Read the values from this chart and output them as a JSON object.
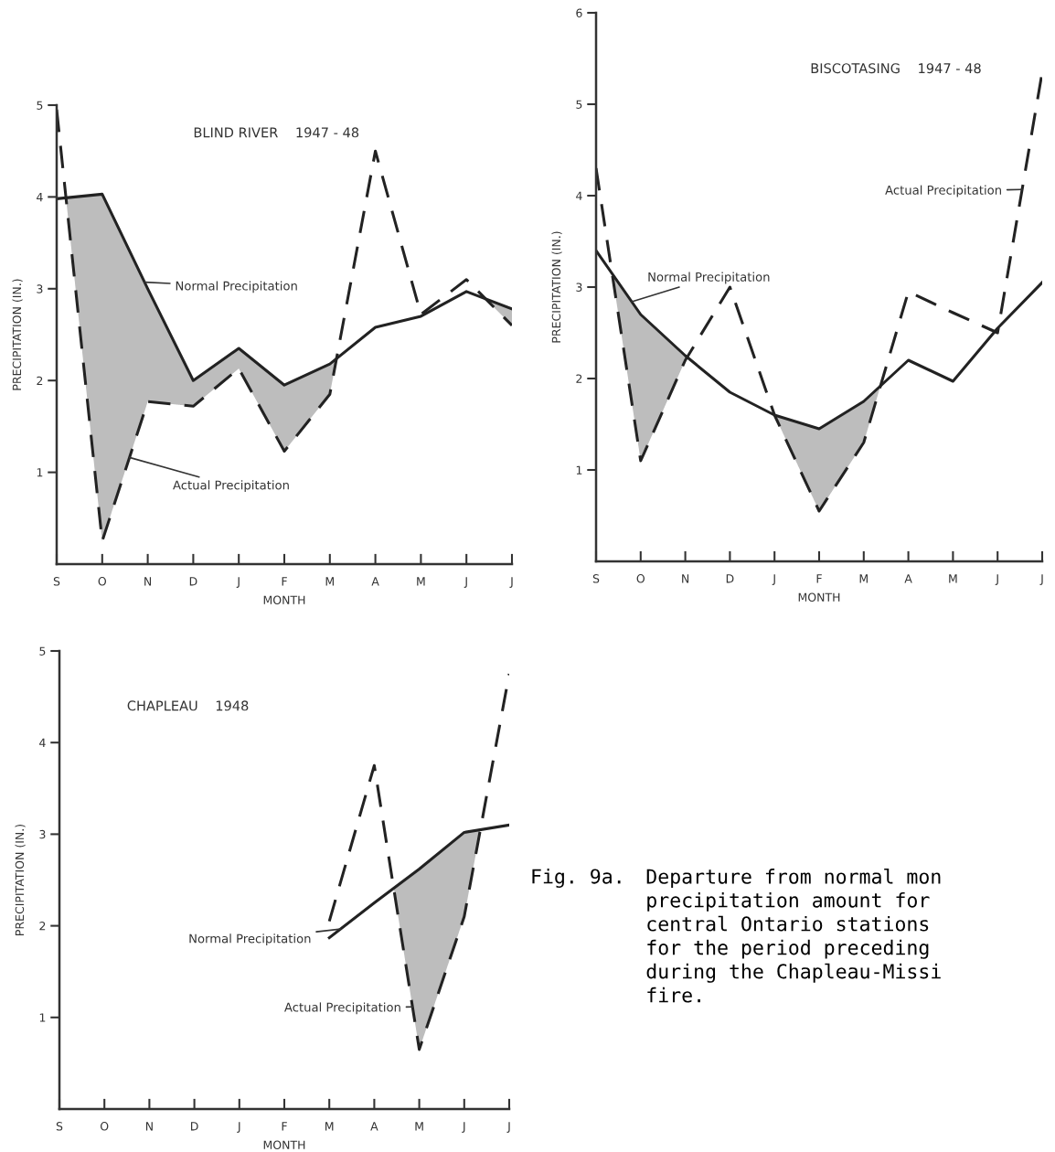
{
  "chart_data": [
    {
      "type": "line",
      "title": "BLIND RIVER    1947 - 48",
      "xlabel": "MONTH",
      "ylabel": "PRECIPITATION (IN.)",
      "categories": [
        "S",
        "O",
        "N",
        "D",
        "J",
        "F",
        "M",
        "A",
        "M",
        "J",
        "J"
      ],
      "ylim": [
        0,
        5
      ],
      "yticks": [
        1,
        2,
        3,
        4,
        5
      ],
      "grid": false,
      "legend": false,
      "marker": "none",
      "series": [
        {
          "name": "Normal Precipitation",
          "color": "#222222",
          "line_style": "solid",
          "values": [
            3.98,
            4.03,
            3.0,
            2.0,
            2.35,
            1.95,
            2.18,
            2.58,
            2.7,
            2.97,
            2.78
          ]
        },
        {
          "name": "Actual Precipitation",
          "color": "#222222",
          "line_style": "dashed",
          "values": [
            4.95,
            0.25,
            1.77,
            1.72,
            2.13,
            1.23,
            1.85,
            4.5,
            2.72,
            3.1,
            2.6
          ]
        }
      ]
    },
    {
      "type": "line",
      "title": "BISCOTASING    1947 - 48",
      "xlabel": "MONTH",
      "ylabel": "PRECIPITATION (IN.)",
      "categories": [
        "S",
        "O",
        "N",
        "D",
        "J",
        "F",
        "M",
        "A",
        "M",
        "J",
        "J"
      ],
      "ylim": [
        0,
        6
      ],
      "yticks": [
        1,
        2,
        3,
        4,
        5,
        6
      ],
      "grid": false,
      "legend": false,
      "marker": "none",
      "series": [
        {
          "name": "Normal Precipitation",
          "color": "#222222",
          "line_style": "solid",
          "values": [
            3.4,
            2.7,
            2.25,
            1.85,
            1.6,
            1.45,
            1.75,
            2.2,
            1.97,
            2.55,
            3.05
          ]
        },
        {
          "name": "Actual Precipitation",
          "color": "#222222",
          "line_style": "dashed",
          "values": [
            4.3,
            1.1,
            2.2,
            3.0,
            1.6,
            0.55,
            1.3,
            2.95,
            2.72,
            2.5,
            5.35
          ]
        }
      ]
    },
    {
      "type": "line",
      "title": "CHAPLEAU    1948",
      "xlabel": "MONTH",
      "ylabel": "PRECIPITATION (IN.)",
      "categories": [
        "S",
        "O",
        "N",
        "D",
        "J",
        "F",
        "M",
        "A",
        "M",
        "J",
        "J"
      ],
      "ylim": [
        0,
        5
      ],
      "yticks": [
        1,
        2,
        3,
        4,
        5
      ],
      "grid": false,
      "legend": false,
      "marker": "none",
      "series": [
        {
          "name": "Normal Precipitation",
          "color": "#222222",
          "line_style": "solid",
          "values": [
            null,
            null,
            null,
            null,
            null,
            null,
            1.87,
            2.25,
            2.62,
            3.02,
            3.1
          ]
        },
        {
          "name": "Actual Precipitation",
          "color": "#222222",
          "line_style": "dashed",
          "values": [
            null,
            null,
            null,
            null,
            null,
            null,
            2.05,
            3.75,
            0.65,
            2.1,
            4.75
          ]
        }
      ]
    },
    {
      "type": "other",
      "annotations": [
        "Fig. 9a.",
        "Departure from normal mon\nprecipitation amount for\ncentral Ontario stations\nfor the period preceding\nduring the Chapleau-Missi\nfire."
      ]
    }
  ]
}
